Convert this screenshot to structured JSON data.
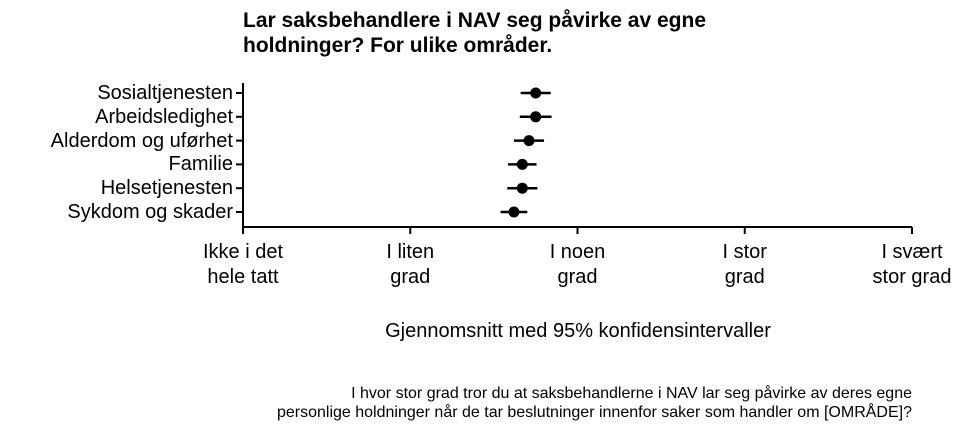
{
  "chart_data": {
    "type": "errorbar",
    "title": "Lar saksbehandlere i NAV seg påvirke av egne holdninger? For ulike områder.",
    "xlabel": "Gjennomsnitt med 95% konfidensintervaller",
    "caption": "I hvor stor grad tror du at saksbehandlerne i NAV lar seg påvirke av deres egne\npersonlige holdninger når de tar beslutninger innenfor saker som handler om [OMRÅDE]?",
    "categories": [
      "Sosialtjenesten",
      "Arbeidsledighet",
      "Alderdom og uførhet",
      "Familie",
      "Helsetjenesten",
      "Sykdom og skader"
    ],
    "values": [
      2.75,
      2.75,
      2.71,
      2.67,
      2.67,
      2.62
    ],
    "errors": [
      0.09,
      0.095,
      0.09,
      0.085,
      0.09,
      0.08
    ],
    "color": "#000000",
    "xlim": [
      1,
      5
    ],
    "xticks": [
      {
        "value": 1,
        "label": "Ikke i det\nhele tatt"
      },
      {
        "value": 2,
        "label": "I liten\ngrad"
      },
      {
        "value": 3,
        "label": "I noen\ngrad"
      },
      {
        "value": 4,
        "label": "I stor\ngrad"
      },
      {
        "value": 5,
        "label": "I svært\nstor grad"
      }
    ]
  }
}
